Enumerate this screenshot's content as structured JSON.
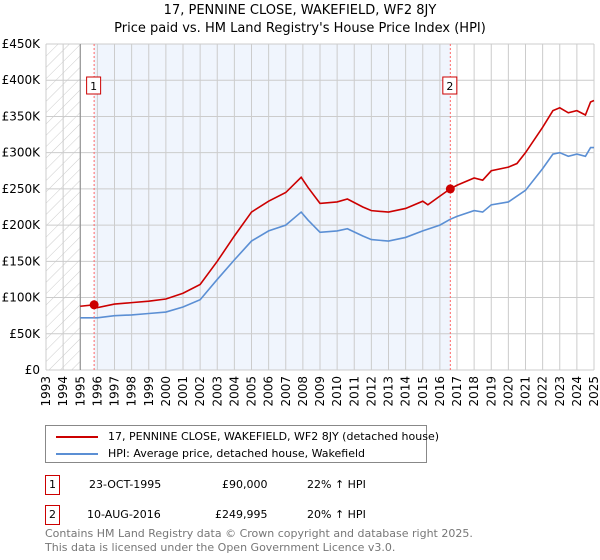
{
  "chart_data": {
    "type": "line",
    "title": "17, PENNINE CLOSE, WAKEFIELD, WF2 8JY",
    "subtitle": "Price paid vs. HM Land Registry's House Price Index (HPI)",
    "xlim": [
      1993,
      2025
    ],
    "ylim": [
      0,
      450000
    ],
    "yticks": [
      0,
      50000,
      100000,
      150000,
      200000,
      250000,
      300000,
      350000,
      400000,
      450000
    ],
    "ytick_labels": [
      "£0",
      "£50K",
      "£100K",
      "£150K",
      "£200K",
      "£250K",
      "£300K",
      "£350K",
      "£400K",
      "£450K"
    ],
    "xticks": [
      "1993",
      "1994",
      "1995",
      "1996",
      "1997",
      "1998",
      "1999",
      "2000",
      "2001",
      "2002",
      "2003",
      "2004",
      "2005",
      "2006",
      "2007",
      "2008",
      "2009",
      "2010",
      "2011",
      "2012",
      "2013",
      "2014",
      "2015",
      "2016",
      "2017",
      "2018",
      "2019",
      "2020",
      "2021",
      "2022",
      "2023",
      "2024",
      "2025"
    ],
    "grid": true,
    "series": [
      {
        "name": "17, PENNINE CLOSE, WAKEFIELD, WF2 8JY (detached house)",
        "color": "#cc0000",
        "x": [
          1995,
          1995.8,
          1996,
          1997,
          1998,
          1999,
          2000,
          2001,
          2002,
          2003,
          2004,
          2005,
          2006,
          2007,
          2007.9,
          2008.3,
          2009,
          2010,
          2010.6,
          2011.5,
          2012,
          2013,
          2014,
          2015,
          2015.3,
          2016,
          2016.6,
          2017,
          2018,
          2018.5,
          2019,
          2020,
          2020.5,
          2021,
          2022,
          2022.6,
          2023,
          2023.5,
          2024,
          2024.5,
          2024.8,
          2025
        ],
        "y": [
          88000,
          90000,
          86000,
          91000,
          93000,
          95000,
          98000,
          106000,
          118000,
          150000,
          185000,
          218000,
          233000,
          245000,
          266000,
          252000,
          230000,
          232000,
          236000,
          225000,
          220000,
          218000,
          223000,
          233000,
          228000,
          240000,
          250000,
          255000,
          265000,
          262000,
          275000,
          280000,
          285000,
          300000,
          335000,
          358000,
          362000,
          355000,
          358000,
          352000,
          370000,
          372000
        ]
      },
      {
        "name": "HPI: Average price, detached house, Wakefield",
        "color": "#5b8fd4",
        "x": [
          1995,
          1996,
          1997,
          1998,
          1999,
          2000,
          2001,
          2002,
          2003,
          2004,
          2005,
          2006,
          2007,
          2007.9,
          2008.3,
          2009,
          2010,
          2010.6,
          2011.5,
          2012,
          2013,
          2014,
          2015,
          2016,
          2016.6,
          2017,
          2018,
          2018.5,
          2019,
          2020,
          2021,
          2022,
          2022.6,
          2023,
          2023.5,
          2024,
          2024.5,
          2024.8,
          2025
        ],
        "y": [
          72000,
          72000,
          75000,
          76000,
          78000,
          80000,
          87000,
          97000,
          125000,
          152000,
          178000,
          192000,
          200000,
          218000,
          207000,
          190000,
          192000,
          195000,
          185000,
          180000,
          178000,
          183000,
          192000,
          200000,
          208000,
          212000,
          220000,
          218000,
          228000,
          232000,
          248000,
          278000,
          298000,
          300000,
          295000,
          298000,
          295000,
          307000,
          307000
        ]
      }
    ],
    "sales": [
      {
        "label": "1",
        "x": 1995.81,
        "y": 90000
      },
      {
        "label": "2",
        "x": 2016.61,
        "y": 249995
      }
    ]
  },
  "legend": {
    "red": "17, PENNINE CLOSE, WAKEFIELD, WF2 8JY (detached house)",
    "blue": "HPI: Average price, detached house, Wakefield"
  },
  "transactions": [
    {
      "num": "1",
      "date": "23-OCT-1995",
      "price": "£90,000",
      "hpi": "22% ↑ HPI"
    },
    {
      "num": "2",
      "date": "10-AUG-2016",
      "price": "£249,995",
      "hpi": "20% ↑ HPI"
    }
  ],
  "footer": {
    "line1": "Contains HM Land Registry data © Crown copyright and database right 2025.",
    "line2": "This data is licensed under the Open Government Licence v3.0."
  }
}
